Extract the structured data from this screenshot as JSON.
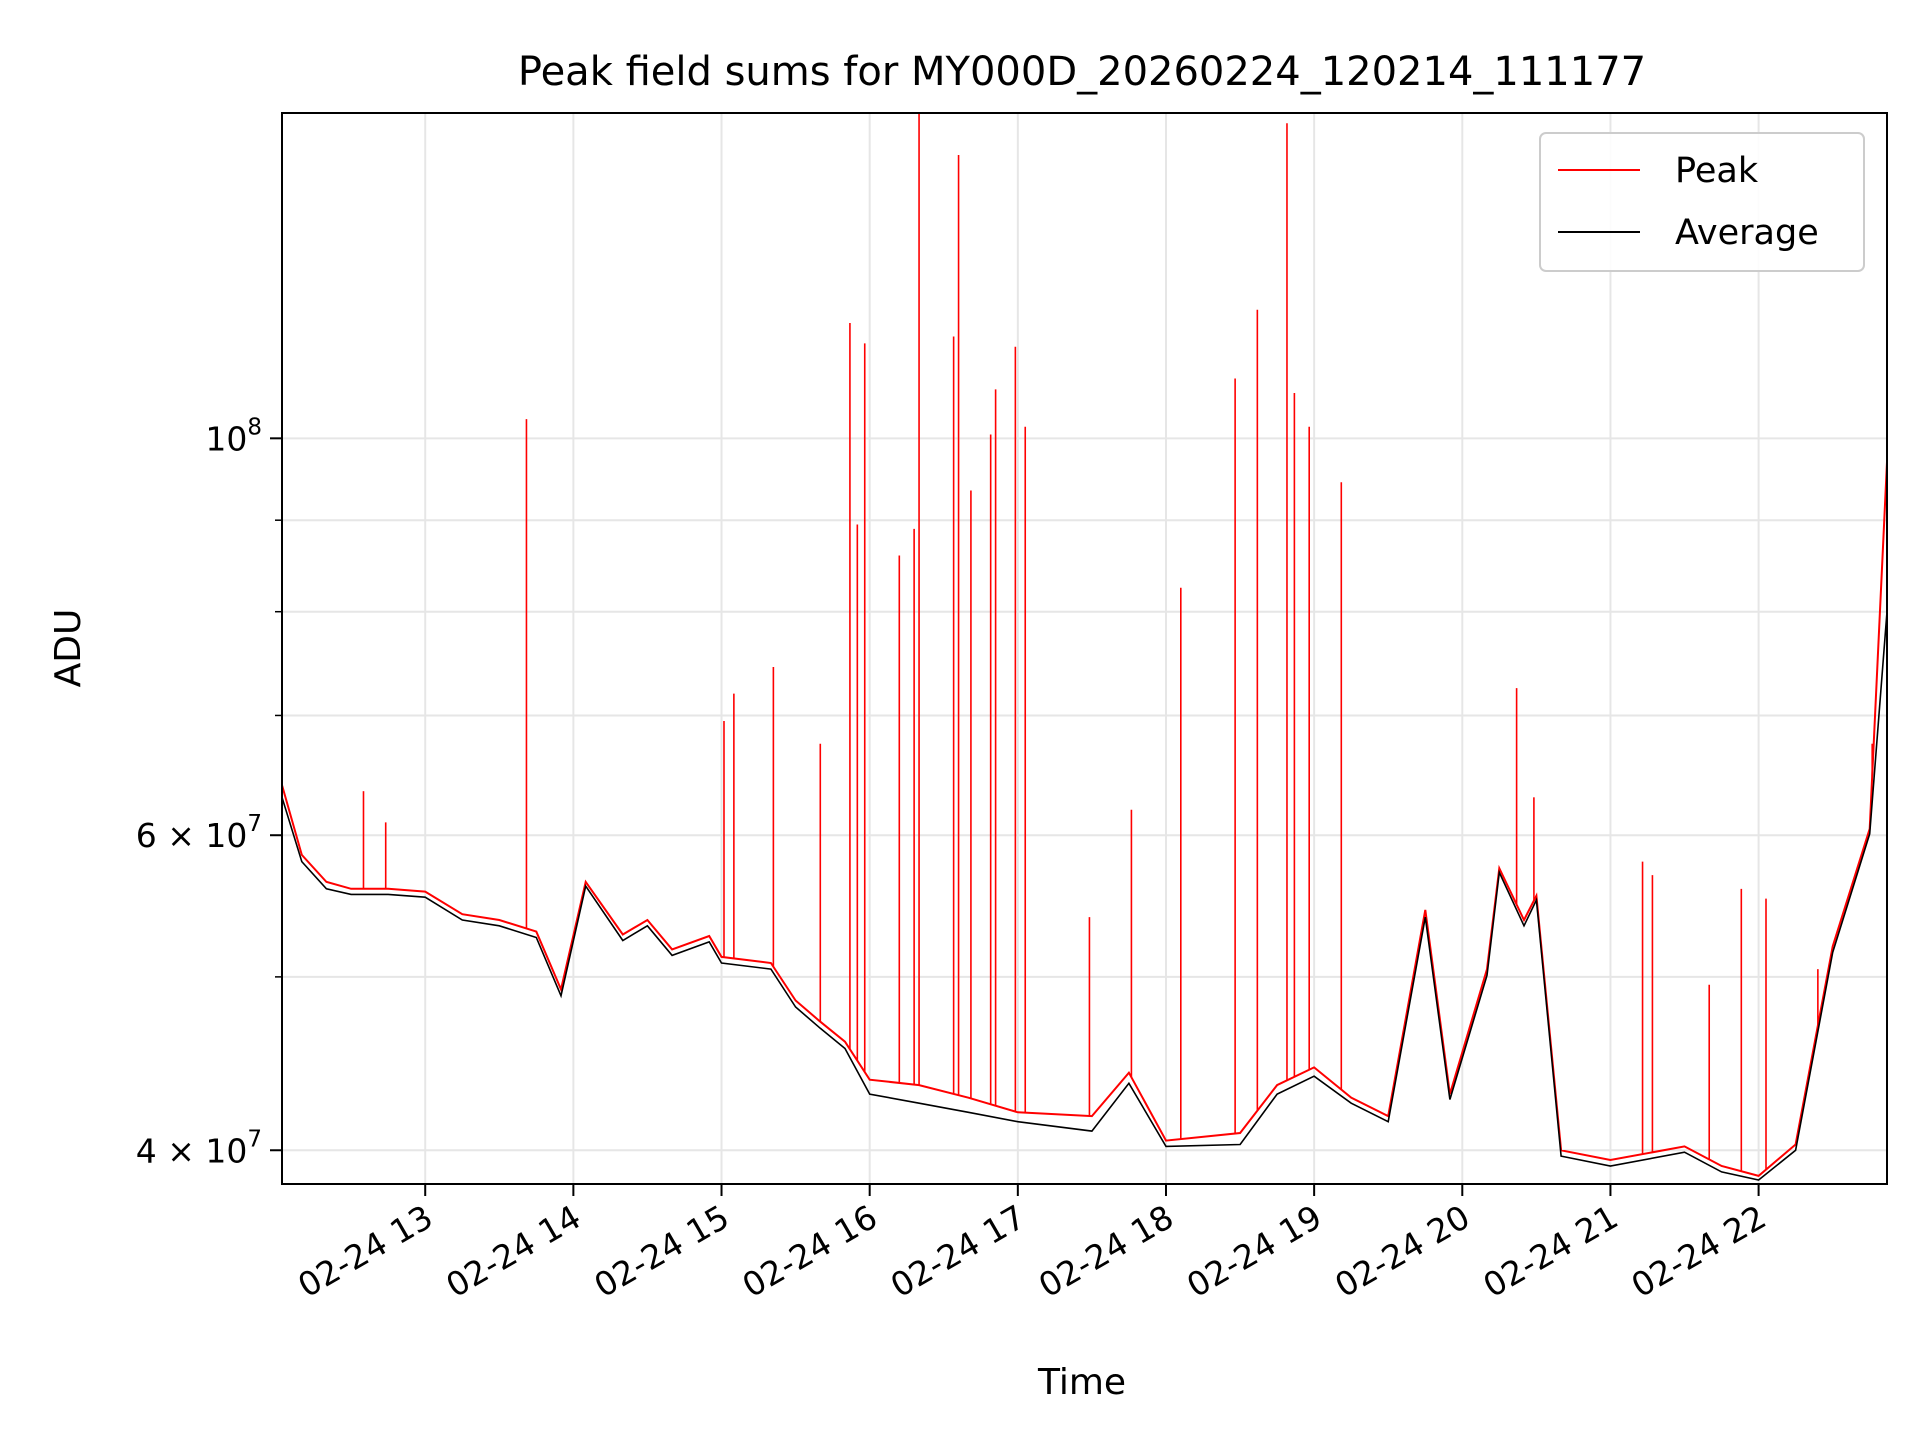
{
  "chart_data": {
    "type": "line",
    "title": "Peak field sums for MY000D_20260224_120214_111177",
    "xlabel": "Time",
    "ylabel": "ADU",
    "y_scale": "log",
    "grid": true,
    "legend_position": "top-right",
    "x_range": [
      "2026-02-24 12:02",
      "2026-02-24 22:52"
    ],
    "ylim": [
      38300000,
      152000000
    ],
    "x_ticks": [
      {
        "t": "2026-02-24 13:00",
        "label": "02-24 13"
      },
      {
        "t": "2026-02-24 14:00",
        "label": "02-24 14"
      },
      {
        "t": "2026-02-24 15:00",
        "label": "02-24 15"
      },
      {
        "t": "2026-02-24 16:00",
        "label": "02-24 16"
      },
      {
        "t": "2026-02-24 17:00",
        "label": "02-24 17"
      },
      {
        "t": "2026-02-24 18:00",
        "label": "02-24 18"
      },
      {
        "t": "2026-02-24 19:00",
        "label": "02-24 19"
      },
      {
        "t": "2026-02-24 20:00",
        "label": "02-24 20"
      },
      {
        "t": "2026-02-24 21:00",
        "label": "02-24 21"
      },
      {
        "t": "2026-02-24 22:00",
        "label": "02-24 22"
      }
    ],
    "y_ticks_major": [
      {
        "value": 40000000,
        "label": "4 × 10",
        "exp": "7"
      },
      {
        "value": 60000000,
        "label": "6 × 10",
        "exp": "7"
      },
      {
        "value": 100000000,
        "label": "10",
        "exp": "8"
      }
    ],
    "y_ticks_minor": [
      50000000,
      70000000,
      80000000,
      90000000
    ],
    "series": [
      {
        "name": "Peak",
        "color": "#ff0000",
        "points": [
          [
            "2026-02-24 12:02",
            64000000
          ],
          [
            "2026-02-24 12:10",
            58500000
          ],
          [
            "2026-02-24 12:20",
            56500000
          ],
          [
            "2026-02-24 12:30",
            56000000
          ],
          [
            "2026-02-24 12:45",
            56000000
          ],
          [
            "2026-02-24 13:00",
            55800000
          ],
          [
            "2026-02-24 13:15",
            54200000
          ],
          [
            "2026-02-24 13:30",
            53800000
          ],
          [
            "2026-02-24 13:45",
            53000000
          ],
          [
            "2026-02-24 13:55",
            49200000
          ],
          [
            "2026-02-24 14:05",
            56500000
          ],
          [
            "2026-02-24 14:20",
            52800000
          ],
          [
            "2026-02-24 14:30",
            53800000
          ],
          [
            "2026-02-24 14:40",
            51800000
          ],
          [
            "2026-02-24 14:55",
            52700000
          ],
          [
            "2026-02-24 15:00",
            51300000
          ],
          [
            "2026-02-24 15:20",
            50900000
          ],
          [
            "2026-02-24 15:30",
            48500000
          ],
          [
            "2026-02-24 15:40",
            47200000
          ],
          [
            "2026-02-24 15:50",
            46000000
          ],
          [
            "2026-02-24 16:00",
            43800000
          ],
          [
            "2026-02-24 16:20",
            43500000
          ],
          [
            "2026-02-24 16:40",
            42800000
          ],
          [
            "2026-02-24 17:00",
            42000000
          ],
          [
            "2026-02-24 17:30",
            41800000
          ],
          [
            "2026-02-24 17:45",
            44200000
          ],
          [
            "2026-02-24 18:00",
            40500000
          ],
          [
            "2026-02-24 18:30",
            40900000
          ],
          [
            "2026-02-24 18:45",
            43500000
          ],
          [
            "2026-02-24 19:00",
            44500000
          ],
          [
            "2026-02-24 19:15",
            42800000
          ],
          [
            "2026-02-24 19:30",
            41800000
          ],
          [
            "2026-02-24 19:45",
            54500000
          ],
          [
            "2026-02-24 19:55",
            43000000
          ],
          [
            "2026-02-24 20:10",
            50500000
          ],
          [
            "2026-02-24 20:15",
            57500000
          ],
          [
            "2026-02-24 20:25",
            53800000
          ],
          [
            "2026-02-24 20:30",
            55500000
          ],
          [
            "2026-02-24 20:40",
            40000000
          ],
          [
            "2026-02-24 21:00",
            39500000
          ],
          [
            "2026-02-24 21:30",
            40200000
          ],
          [
            "2026-02-24 21:45",
            39200000
          ],
          [
            "2026-02-24 22:00",
            38700000
          ],
          [
            "2026-02-24 22:15",
            40300000
          ],
          [
            "2026-02-24 22:30",
            52000000
          ],
          [
            "2026-02-24 22:45",
            60500000
          ],
          [
            "2026-02-24 22:52",
            97000000
          ]
        ],
        "spikes": [
          [
            "2026-02-24 12:35",
            63500000
          ],
          [
            "2026-02-24 12:44",
            61000000
          ],
          [
            "2026-02-24 13:41",
            102500000
          ],
          [
            "2026-02-24 15:01",
            69500000
          ],
          [
            "2026-02-24 15:05",
            72000000
          ],
          [
            "2026-02-24 15:21",
            74500000
          ],
          [
            "2026-02-24 15:40",
            67500000
          ],
          [
            "2026-02-24 15:52",
            116000000
          ],
          [
            "2026-02-24 15:55",
            89500000
          ],
          [
            "2026-02-24 15:58",
            113000000
          ],
          [
            "2026-02-24 16:12",
            86000000
          ],
          [
            "2026-02-24 16:18",
            89000000
          ],
          [
            "2026-02-24 16:20",
            152000000
          ],
          [
            "2026-02-24 16:34",
            114000000
          ],
          [
            "2026-02-24 16:36",
            144000000
          ],
          [
            "2026-02-24 16:41",
            93500000
          ],
          [
            "2026-02-24 16:49",
            100500000
          ],
          [
            "2026-02-24 16:51",
            106500000
          ],
          [
            "2026-02-24 16:59",
            112500000
          ],
          [
            "2026-02-24 17:03",
            101500000
          ],
          [
            "2026-02-24 17:29",
            54000000
          ],
          [
            "2026-02-24 17:46",
            62000000
          ],
          [
            "2026-02-24 18:06",
            82500000
          ],
          [
            "2026-02-24 18:28",
            108000000
          ],
          [
            "2026-02-24 18:37",
            118000000
          ],
          [
            "2026-02-24 18:49",
            150000000
          ],
          [
            "2026-02-24 18:52",
            106000000
          ],
          [
            "2026-02-24 18:58",
            101500000
          ],
          [
            "2026-02-24 19:11",
            94500000
          ],
          [
            "2026-02-24 20:22",
            72500000
          ],
          [
            "2026-02-24 20:29",
            63000000
          ],
          [
            "2026-02-24 21:13",
            58000000
          ],
          [
            "2026-02-24 21:17",
            57000000
          ],
          [
            "2026-02-24 21:40",
            49500000
          ],
          [
            "2026-02-24 21:53",
            56000000
          ],
          [
            "2026-02-24 22:03",
            55300000
          ],
          [
            "2026-02-24 22:24",
            50500000
          ],
          [
            "2026-02-24 22:46",
            67500000
          ]
        ]
      },
      {
        "name": "Average",
        "color": "#000000",
        "points": [
          [
            "2026-02-24 12:02",
            63000000
          ],
          [
            "2026-02-24 12:10",
            58000000
          ],
          [
            "2026-02-24 12:20",
            56000000
          ],
          [
            "2026-02-24 12:30",
            55600000
          ],
          [
            "2026-02-24 12:45",
            55600000
          ],
          [
            "2026-02-24 13:00",
            55400000
          ],
          [
            "2026-02-24 13:15",
            53800000
          ],
          [
            "2026-02-24 13:30",
            53400000
          ],
          [
            "2026-02-24 13:45",
            52600000
          ],
          [
            "2026-02-24 13:55",
            48800000
          ],
          [
            "2026-02-24 14:05",
            56200000
          ],
          [
            "2026-02-24 14:20",
            52400000
          ],
          [
            "2026-02-24 14:30",
            53400000
          ],
          [
            "2026-02-24 14:40",
            51400000
          ],
          [
            "2026-02-24 14:55",
            52300000
          ],
          [
            "2026-02-24 15:00",
            50900000
          ],
          [
            "2026-02-24 15:20",
            50500000
          ],
          [
            "2026-02-24 15:30",
            48100000
          ],
          [
            "2026-02-24 15:40",
            46800000
          ],
          [
            "2026-02-24 15:50",
            45600000
          ],
          [
            "2026-02-24 16:00",
            43000000
          ],
          [
            "2026-02-24 16:20",
            42500000
          ],
          [
            "2026-02-24 16:40",
            42000000
          ],
          [
            "2026-02-24 17:00",
            41500000
          ],
          [
            "2026-02-24 17:30",
            41000000
          ],
          [
            "2026-02-24 17:45",
            43600000
          ],
          [
            "2026-02-24 18:00",
            40200000
          ],
          [
            "2026-02-24 18:30",
            40300000
          ],
          [
            "2026-02-24 18:45",
            43000000
          ],
          [
            "2026-02-24 19:00",
            44000000
          ],
          [
            "2026-02-24 19:15",
            42500000
          ],
          [
            "2026-02-24 19:30",
            41500000
          ],
          [
            "2026-02-24 19:45",
            54000000
          ],
          [
            "2026-02-24 19:55",
            42700000
          ],
          [
            "2026-02-24 20:10",
            50100000
          ],
          [
            "2026-02-24 20:15",
            57200000
          ],
          [
            "2026-02-24 20:25",
            53400000
          ],
          [
            "2026-02-24 20:30",
            55200000
          ],
          [
            "2026-02-24 20:40",
            39700000
          ],
          [
            "2026-02-24 21:00",
            39200000
          ],
          [
            "2026-02-24 21:30",
            39900000
          ],
          [
            "2026-02-24 21:45",
            38900000
          ],
          [
            "2026-02-24 22:00",
            38500000
          ],
          [
            "2026-02-24 22:15",
            40000000
          ],
          [
            "2026-02-24 22:30",
            51600000
          ],
          [
            "2026-02-24 22:45",
            60100000
          ],
          [
            "2026-02-24 22:52",
            80000000
          ]
        ]
      }
    ]
  }
}
